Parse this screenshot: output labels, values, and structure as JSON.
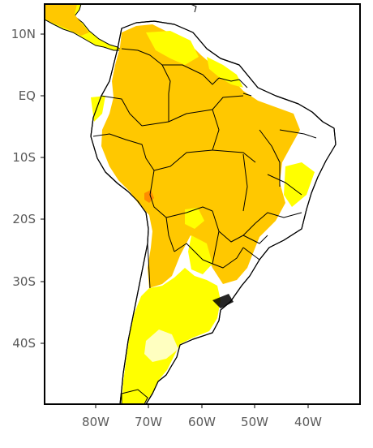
{
  "map": {
    "lat_labels": [
      "10N",
      "EQ",
      "10S",
      "20S",
      "30S",
      "40S"
    ],
    "lon_labels": [
      "80W",
      "70W",
      "60W",
      "50W",
      "40W"
    ],
    "colors": {
      "frame": "#000000",
      "background": "#ffffff",
      "level_light": "#ffffc0",
      "level_yellow": "#ffff00",
      "level_orange": "#ffc800",
      "level_red": "#ff8c00"
    }
  }
}
